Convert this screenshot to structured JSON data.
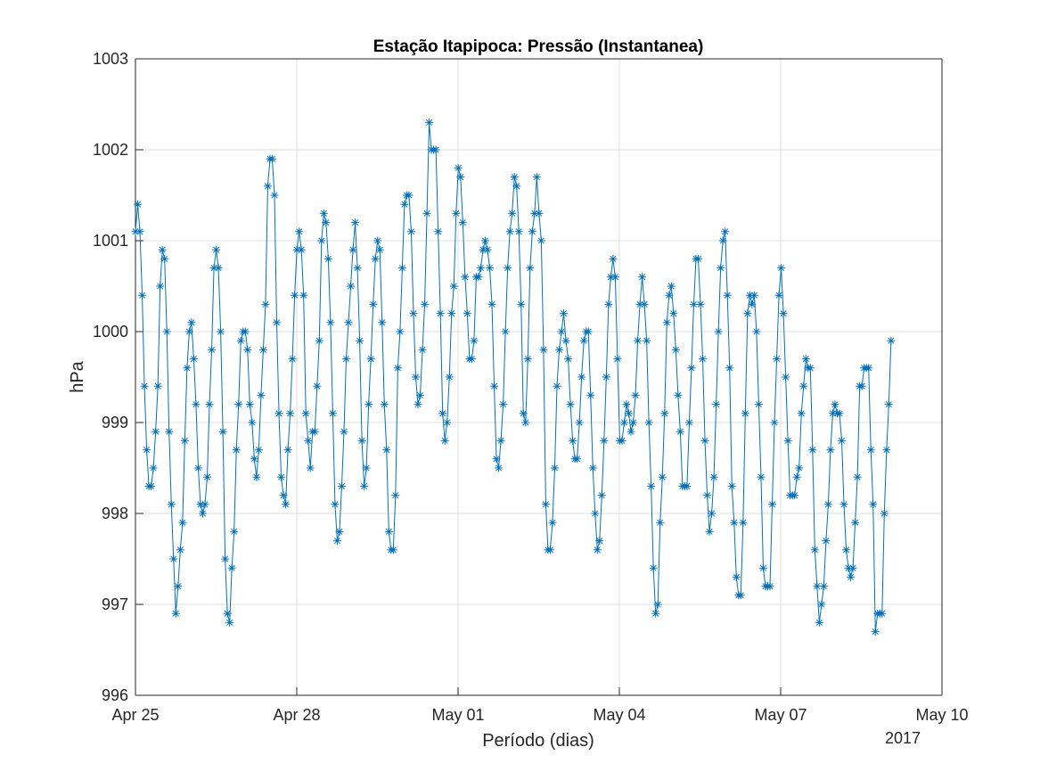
{
  "chart_data": {
    "type": "line",
    "title": "Estação Itapipoca: Pressão (Instantanea)",
    "xlabel": "Período (dias)",
    "ylabel": "hPa",
    "x_secondary_label": "2017",
    "xlim": [
      0,
      15
    ],
    "ylim": [
      996,
      1003
    ],
    "x_ticks": [
      0,
      3,
      6,
      9,
      12,
      15
    ],
    "x_tick_labels": [
      "Apr 25",
      "Apr 28",
      "May 01",
      "May 04",
      "May 07",
      "May 10"
    ],
    "y_ticks": [
      996,
      997,
      998,
      999,
      1000,
      1001,
      1002,
      1003
    ],
    "y_tick_labels": [
      "996",
      "997",
      "998",
      "999",
      "1000",
      "1001",
      "1002",
      "1003"
    ],
    "grid": true,
    "marker": "asterisk",
    "series_color": "#0072bd",
    "x_units": "days since Apr 25 2017 00:00",
    "series": [
      {
        "name": "Pressão",
        "x_start": 0,
        "x_step": 0.0417,
        "values": [
          1001.1,
          1001.4,
          1001.1,
          1000.4,
          999.4,
          998.7,
          998.3,
          998.3,
          998.5,
          998.9,
          999.4,
          1000.5,
          1000.9,
          1000.8,
          1000.0,
          998.9,
          998.1,
          997.5,
          996.9,
          997.2,
          997.6,
          997.9,
          998.8,
          999.6,
          1000.0,
          1000.1,
          999.7,
          999.2,
          998.5,
          998.1,
          998.0,
          998.1,
          998.4,
          999.2,
          999.8,
          1000.7,
          1000.9,
          1000.7,
          1000.0,
          998.9,
          997.5,
          996.9,
          996.8,
          997.4,
          997.8,
          998.7,
          999.2,
          999.9,
          1000.0,
          1000.0,
          999.8,
          999.2,
          999.0,
          998.6,
          998.4,
          998.7,
          999.3,
          999.8,
          1000.3,
          1001.6,
          1001.9,
          1001.9,
          1001.5,
          1000.1,
          999.1,
          998.4,
          998.2,
          998.1,
          998.7,
          999.1,
          999.7,
          1000.4,
          1000.9,
          1001.1,
          1000.9,
          1000.4,
          999.1,
          998.8,
          998.5,
          998.9,
          998.9,
          999.4,
          999.9,
          1001.0,
          1001.3,
          1001.2,
          1000.8,
          1000.1,
          999.1,
          998.1,
          997.7,
          997.8,
          998.3,
          998.9,
          999.7,
          1000.1,
          1000.5,
          1000.9,
          1001.2,
          1000.7,
          999.9,
          998.8,
          998.3,
          998.5,
          999.2,
          999.7,
          1000.3,
          1000.8,
          1001.0,
          1000.9,
          1000.1,
          999.2,
          998.7,
          997.8,
          997.6,
          997.6,
          998.2,
          999.6,
          1000.0,
          1000.7,
          1001.4,
          1001.5,
          1001.5,
          1001.1,
          1000.2,
          999.5,
          999.2,
          999.3,
          999.8,
          1000.3,
          1001.3,
          1002.3,
          1002.0,
          1002.0,
          1002.0,
          1001.1,
          1000.2,
          999.1,
          998.8,
          999.0,
          999.5,
          1000.2,
          1000.5,
          1001.3,
          1001.8,
          1001.7,
          1001.2,
          1000.6,
          1000.2,
          999.7,
          999.7,
          999.9,
          1000.6,
          1000.6,
          1000.7,
          1000.9,
          1001.0,
          1000.9,
          1000.7,
          1000.3,
          999.4,
          998.6,
          998.5,
          998.8,
          999.2,
          1000.0,
          1000.7,
          1001.1,
          1001.3,
          1001.7,
          1001.6,
          1001.1,
          1000.3,
          999.1,
          999.0,
          999.7,
          1000.7,
          1001.1,
          1001.3,
          1001.7,
          1001.3,
          1001.0,
          999.8,
          998.1,
          997.6,
          997.6,
          997.9,
          998.5,
          999.4,
          999.8,
          1000.0,
          1000.2,
          999.9,
          999.7,
          999.2,
          998.8,
          998.6,
          998.6,
          999.0,
          999.5,
          999.9,
          1000.0,
          1000.0,
          999.3,
          998.5,
          998.0,
          997.6,
          997.7,
          998.2,
          998.8,
          999.5,
          1000.3,
          1000.6,
          1000.8,
          1000.6,
          999.7,
          998.8,
          998.8,
          999.0,
          999.2,
          999.1,
          998.9,
          999.0,
          999.3,
          999.9,
          1000.3,
          1000.6,
          1000.3,
          999.9,
          999.0,
          998.3,
          997.4,
          996.9,
          997.0,
          997.9,
          998.4,
          999.1,
          1000.1,
          1000.4,
          1000.5,
          1000.2,
          999.8,
          999.3,
          998.9,
          998.3,
          998.3,
          998.3,
          999.0,
          999.6,
          1000.3,
          1000.8,
          1000.8,
          1000.3,
          999.7,
          998.8,
          998.2,
          997.8,
          998.0,
          998.4,
          999.2,
          1000.0,
          1000.7,
          1001.0,
          1001.1,
          1000.4,
          999.6,
          998.3,
          997.9,
          997.3,
          997.1,
          997.1,
          997.9,
          999.1,
          1000.2,
          1000.4,
          1000.3,
          1000.4,
          1000.0,
          999.2,
          998.4,
          997.4,
          997.2,
          997.2,
          997.2,
          998.1,
          999.0,
          999.7,
          1000.4,
          1000.7,
          1000.2,
          999.5,
          998.8,
          998.2,
          998.2,
          998.2,
          998.4,
          998.5,
          999.1,
          999.4,
          999.7,
          999.6,
          999.6,
          998.7,
          997.6,
          997.2,
          996.8,
          997.0,
          997.2,
          997.7,
          998.1,
          998.7,
          999.1,
          999.2,
          999.1,
          999.1,
          998.8,
          998.1,
          997.6,
          997.4,
          997.3,
          997.4,
          997.9,
          998.4,
          999.4,
          999.4,
          999.6,
          999.6,
          999.6,
          998.7,
          998.1,
          996.7,
          996.9,
          996.9,
          996.9,
          998.0,
          998.7,
          999.2,
          999.9
        ]
      }
    ]
  }
}
